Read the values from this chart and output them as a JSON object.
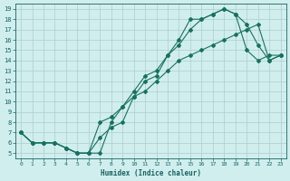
{
  "title": "",
  "xlabel": "Humidex (Indice chaleur)",
  "ylabel": "",
  "bg_color": "#d0eeee",
  "grid_color": "#b0cccc",
  "line_color": "#1a7060",
  "xlim": [
    -0.5,
    23.5
  ],
  "ylim": [
    4.5,
    19.5
  ],
  "xticks": [
    0,
    1,
    2,
    3,
    4,
    5,
    6,
    7,
    8,
    9,
    10,
    11,
    12,
    13,
    14,
    15,
    16,
    17,
    18,
    19,
    20,
    21,
    22,
    23
  ],
  "yticks": [
    5,
    6,
    7,
    8,
    9,
    10,
    11,
    12,
    13,
    14,
    15,
    16,
    17,
    18,
    19
  ],
  "line1_x": [
    0,
    1,
    2,
    3,
    4,
    5,
    6,
    7,
    8,
    9,
    10,
    11,
    12,
    13,
    14,
    15,
    16,
    17,
    18,
    19,
    20,
    21,
    22,
    23
  ],
  "line1_y": [
    7.0,
    6.0,
    6.0,
    6.0,
    5.5,
    5.0,
    5.0,
    8.0,
    8.5,
    9.5,
    11.0,
    12.5,
    13.0,
    14.5,
    15.5,
    17.0,
    18.0,
    18.5,
    19.0,
    18.5,
    17.5,
    15.5,
    14.0,
    14.5
  ],
  "line2_x": [
    0,
    1,
    2,
    3,
    4,
    5,
    6,
    7,
    8,
    9,
    10,
    11,
    12,
    13,
    14,
    15,
    16,
    17,
    18,
    19,
    20,
    21,
    22,
    23
  ],
  "line2_y": [
    7.0,
    6.0,
    6.0,
    6.0,
    5.5,
    5.0,
    5.0,
    6.5,
    7.5,
    8.0,
    10.5,
    12.0,
    12.5,
    14.5,
    16.0,
    18.0,
    18.0,
    18.5,
    19.0,
    18.5,
    15.0,
    14.0,
    14.5,
    14.5
  ],
  "line3_x": [
    0,
    1,
    2,
    3,
    4,
    5,
    6,
    7,
    8,
    9,
    10,
    11,
    12,
    13,
    14,
    15,
    16,
    17,
    18,
    19,
    20,
    21,
    22,
    23
  ],
  "line3_y": [
    7.0,
    6.0,
    6.0,
    6.0,
    5.5,
    5.0,
    5.0,
    5.0,
    8.0,
    9.5,
    10.5,
    11.0,
    12.0,
    13.0,
    14.0,
    14.5,
    15.0,
    15.5,
    16.0,
    16.5,
    17.0,
    17.5,
    14.0,
    14.5
  ]
}
